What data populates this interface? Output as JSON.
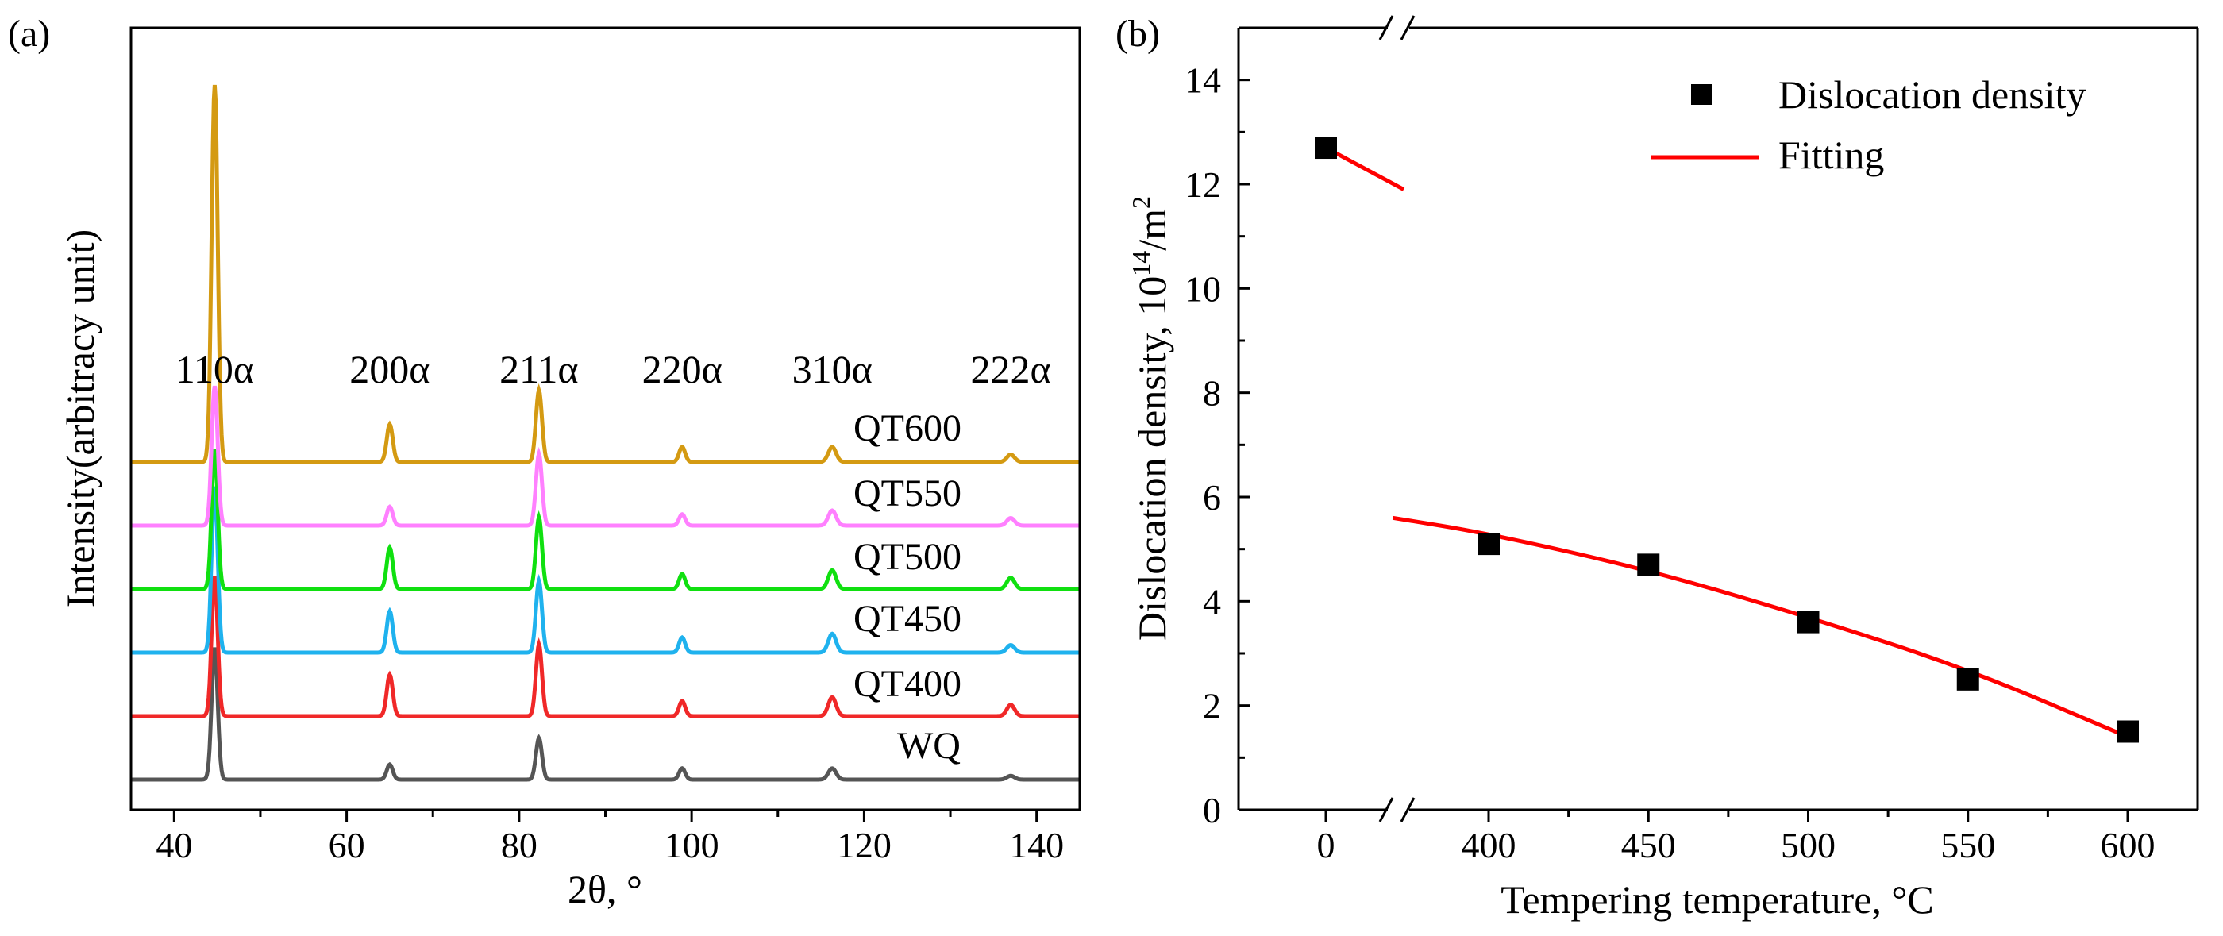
{
  "panel_labels": {
    "a": "(a)",
    "b": "(b)"
  },
  "chart_data": [
    {
      "type": "line",
      "panel": "(a)",
      "xlabel": "2θ, °",
      "ylabel": "Intensity(arbitracy unit)",
      "xlim": [
        35,
        145
      ],
      "xticks": [
        "40",
        "60",
        "80",
        "100",
        "120",
        "140"
      ],
      "peak_positions": [
        44.7,
        65.0,
        82.3,
        98.9,
        116.3,
        137.0
      ],
      "peak_labels": [
        "110α",
        "200α",
        "211α",
        "220α",
        "310α",
        "222α"
      ],
      "series": [
        {
          "name": "WQ",
          "color": "#555555",
          "relative_heights": [
            0.35,
            0.04,
            0.11,
            0.03,
            0.03,
            0.01
          ]
        },
        {
          "name": "QT400",
          "color": "#f02828",
          "relative_heights": [
            0.37,
            0.11,
            0.19,
            0.04,
            0.05,
            0.03
          ]
        },
        {
          "name": "QT450",
          "color": "#1fb2ee",
          "relative_heights": [
            0.44,
            0.11,
            0.19,
            0.04,
            0.05,
            0.02
          ]
        },
        {
          "name": "QT500",
          "color": "#10e010",
          "relative_heights": [
            0.37,
            0.11,
            0.19,
            0.04,
            0.05,
            0.03
          ]
        },
        {
          "name": "QT550",
          "color": "#ff80ff",
          "relative_heights": [
            0.37,
            0.05,
            0.19,
            0.03,
            0.04,
            0.02
          ]
        },
        {
          "name": "QT600",
          "color": "#d49a12",
          "relative_heights": [
            1.0,
            0.1,
            0.19,
            0.04,
            0.04,
            0.02
          ]
        }
      ]
    },
    {
      "type": "scatter",
      "panel": "(b)",
      "xlabel": "Tempering temperature, °C",
      "ylabel": "Dislocation density, 10",
      "ylabel_sup": "14",
      "ylabel_unit": "/m",
      "ylabel_sup2": "2",
      "ylim": [
        0,
        15
      ],
      "yticks": [
        "0",
        "2",
        "4",
        "6",
        "8",
        "10",
        "12",
        "14"
      ],
      "xticks": [
        "0",
        "400",
        "450",
        "500",
        "550",
        "600"
      ],
      "axis_break": true,
      "legend_position": "top-right",
      "series": [
        {
          "name": "Dislocation density",
          "marker": "square",
          "color": "#000000",
          "x": [
            0,
            400,
            450,
            500,
            550,
            600
          ],
          "y": [
            12.7,
            5.1,
            4.7,
            3.6,
            2.5,
            1.5
          ]
        },
        {
          "name": "Fitting",
          "marker": "line",
          "color": "#ff0000",
          "segments": [
            {
              "x": [
                0,
                95
              ],
              "y": [
                12.7,
                11.9
              ]
            },
            {
              "x": [
                370,
                400,
                450,
                500,
                550,
                600
              ],
              "y": [
                5.6,
                5.3,
                4.6,
                3.7,
                2.7,
                1.4
              ]
            }
          ]
        }
      ]
    }
  ]
}
